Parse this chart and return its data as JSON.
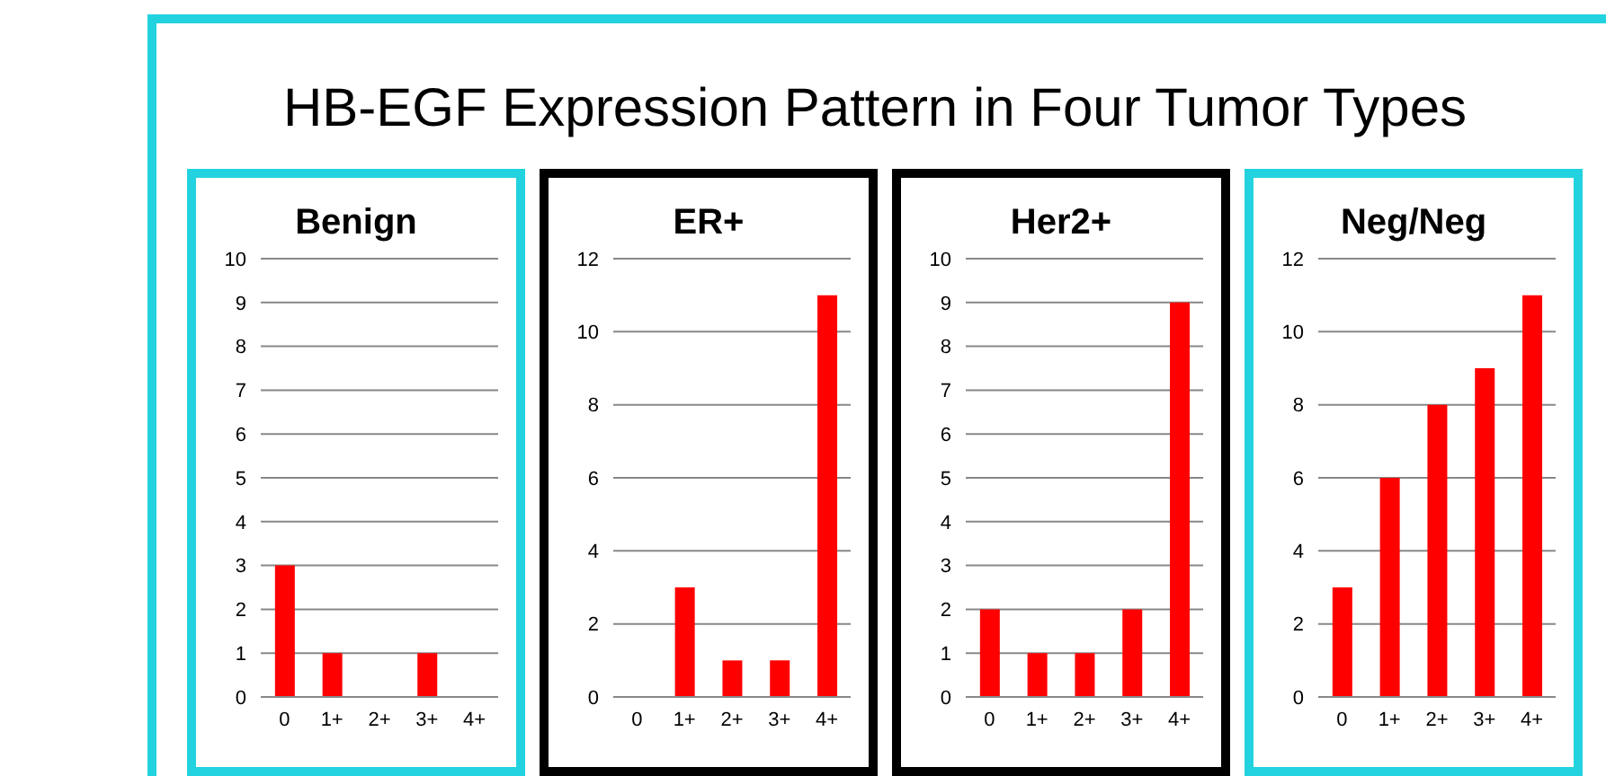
{
  "chart_data": [
    {
      "type": "other",
      "title": "HB-EGF Expression Pattern in Four Tumor Types"
    },
    {
      "type": "bar",
      "title": "Benign",
      "categories": [
        "0",
        "1+",
        "2+",
        "3+",
        "4+"
      ],
      "values": [
        3,
        1,
        0,
        1,
        0
      ],
      "color": "#ff0000",
      "ylim": [
        0,
        10
      ],
      "yticks": [
        0,
        1,
        2,
        3,
        4,
        5,
        6,
        7,
        8,
        9,
        10
      ],
      "grid": "y"
    },
    {
      "type": "bar",
      "title": "ER+",
      "categories": [
        "0",
        "1+",
        "2+",
        "3+",
        "4+"
      ],
      "values": [
        0,
        3,
        1,
        1,
        11
      ],
      "color": "#ff0000",
      "ylim": [
        0,
        12
      ],
      "yticks": [
        0,
        2,
        4,
        6,
        8,
        10,
        12
      ],
      "grid": "y"
    },
    {
      "type": "bar",
      "title": "Her2+",
      "categories": [
        "0",
        "1+",
        "2+",
        "3+",
        "4+"
      ],
      "values": [
        2,
        1,
        1,
        2,
        9
      ],
      "color": "#ff0000",
      "ylim": [
        0,
        10
      ],
      "yticks": [
        0,
        1,
        2,
        3,
        4,
        5,
        6,
        7,
        8,
        9,
        10
      ],
      "grid": "y"
    },
    {
      "type": "bar",
      "title": "Neg/Neg",
      "categories": [
        "0",
        "1+",
        "2+",
        "3+",
        "4+"
      ],
      "values": [
        3,
        6,
        8,
        9,
        11
      ],
      "color": "#ff0000",
      "ylim": [
        0,
        12
      ],
      "yticks": [
        0,
        2,
        4,
        6,
        8,
        10,
        12
      ],
      "grid": "y"
    }
  ]
}
